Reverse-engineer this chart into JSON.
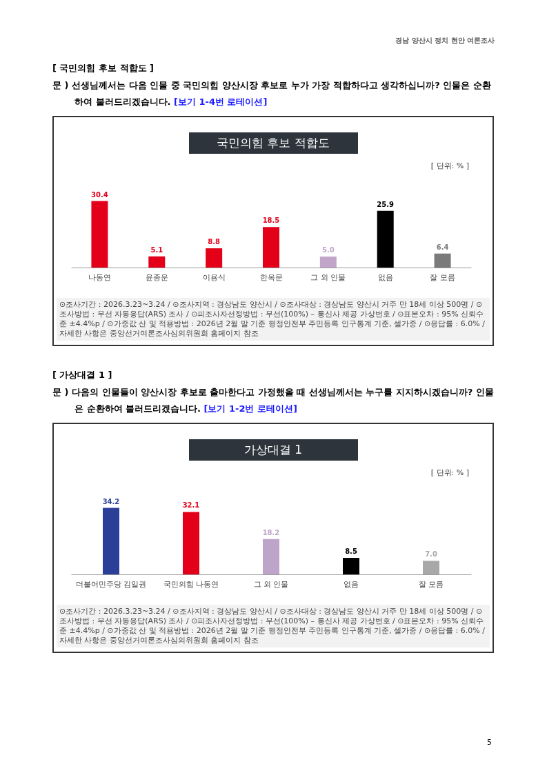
{
  "chart_data": [
    {
      "type": "bar",
      "title": "국민의힘 후보 적합도",
      "categories": [
        "나동연",
        "윤종운",
        "이용식",
        "한옥문",
        "그 외 인물",
        "없음",
        "잘 모름"
      ],
      "values": [
        30.4,
        5.1,
        8.8,
        18.5,
        5.0,
        25.9,
        6.4
      ],
      "colors": [
        "#e30018",
        "#e30018",
        "#e30018",
        "#e30018",
        "#c1a5c9",
        "#000000",
        "#7a7a7a"
      ],
      "value_labels": [
        "30.4",
        "5.1",
        "8.8",
        "18.5",
        "5.0",
        "25.9",
        "6.4"
      ],
      "annotations": [
        "경남 양산시 정치 현안 여론조사",
        "[ 국민의힘 후보 적합도 ]",
        "문 ) 선생님께서는 다음 인물 중 국민의힘 양산시장 후보로 누가 가장 적합하다고 생각하십니까? 인물은 순환하여 불러드리겠습니다. [보기 1-4번 로테이션]",
        "[ 단위: % ]",
        "⊙조사기간 : 2026.3.23~3.24 / ⊙조사지역 : 경상남도 양산시 / ⊙조사대상 : 경상남도 양산시 거주 만 18세 이상 500명 / ⊙조사방법 : 무선 자동응답(ARS) 조사 / ⊙피조사자선정방법 : 무선(100%) – 통신사 제공 가상번호 / ⊙표본오차 : 95% 신뢰수준 ±4.4%p / ⊙가중값 산 및 적용방법 : 2026년 2월 말 기준 행정안전부 주민등록 인구통계 기준, 셀가중 / ⊙응답률 : 6.0% / 자세한 사항은 중앙선거여론조사심의위원회 홈페이지 참조"
      ]
    },
    {
      "type": "bar",
      "title": "가상대결 1",
      "categories": [
        "더불어민주당 김일권",
        "국민의힘 나동연",
        "그 외 인물",
        "없음",
        "잘 모름"
      ],
      "values": [
        34.2,
        32.1,
        18.2,
        8.5,
        7.0
      ],
      "colors": [
        "#2b3f99",
        "#e30018",
        "#bca5c8",
        "#000000",
        "#a8a8a8"
      ],
      "value_labels": [
        "34.2",
        "32.1",
        "18.2",
        "8.5",
        "7.0"
      ],
      "annotations": [
        "[ 가상대결 1 ]",
        "문 ) 다음의 인물들이 양산시장 후보로 출마한다고 가정했을 때 선생님께서는 누구를 지지하시겠습니까? 인물은 순환하여 불러드리겠습니다. [보기 1-2번 로테이션]",
        "[ 단위: % ]",
        "⊙조사기간 : 2026.3.23~3.24 / ⊙조사지역 : 경상남도 양산시 / ⊙조사대상 : 경상남도 양산시 거주 만 18세 이상 500명 / ⊙조사방법 : 무선 자동응답(ARS) 조사 / ⊙피조사자선정방법 : 무선(100%) – 통신사 제공 가상번호 / ⊙표본오차 : 95% 신뢰수준 ±4.4%p / ⊙가중값 산 및 적용방법 : 2026년 2월 말 기준 행정안전부 주민등록 인구통계 기준, 셀가중 / ⊙응답률 : 6.0% / 자세한 사항은 중앙선거여론조사심의위원회 홈페이지 참조",
        "5"
      ]
    }
  ]
}
